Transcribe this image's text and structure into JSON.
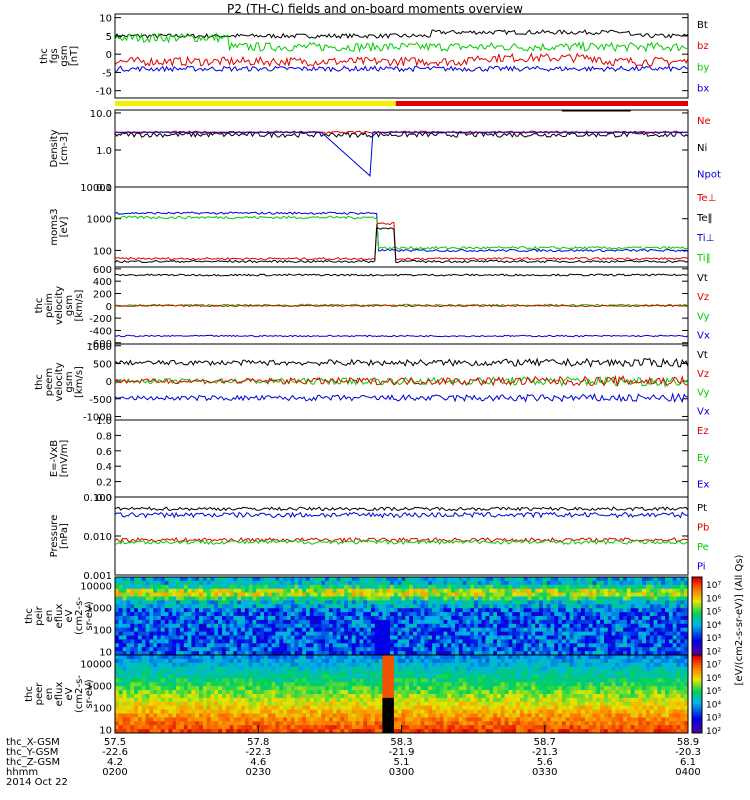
{
  "title": "P2 (TH-C) fields and on-board moments overview",
  "colors": {
    "black": "#000000",
    "red": "#e00000",
    "green": "#00cc00",
    "blue": "#0000dd",
    "yellow": "#f5f000"
  },
  "chart_data": [
    {
      "type": "line",
      "name": "fgs",
      "ylabel": "thc\nfgs\ngsm\n[nT]",
      "ylim": [
        -12,
        11
      ],
      "yticks": [
        "10",
        "5",
        "0",
        "-5",
        "-10"
      ],
      "legend": [
        {
          "label": "Bt",
          "color": "black"
        },
        {
          "label": "bz",
          "color": "red"
        },
        {
          "label": "by",
          "color": "green"
        },
        {
          "label": "bx",
          "color": "blue"
        }
      ],
      "series": [
        {
          "name": "Bt",
          "approx": 5
        },
        {
          "name": "bz",
          "approx": -2
        },
        {
          "name": "by",
          "approx": 2
        },
        {
          "name": "bx",
          "approx": -4
        }
      ]
    },
    {
      "type": "line",
      "name": "density",
      "ylabel": "Density\n[cm-3]",
      "scale": "log",
      "ylim": [
        0.1,
        12
      ],
      "yticks": [
        "10.0",
        "1.0",
        "0.1"
      ],
      "legend": [
        {
          "label": "Ne",
          "color": "red"
        },
        {
          "label": "Ni",
          "color": "black"
        },
        {
          "label": "Npot",
          "color": "blue"
        }
      ],
      "series": [
        {
          "name": "Ne",
          "approx": 3
        },
        {
          "name": "Ni",
          "approx": 2.5
        },
        {
          "name": "Npot",
          "approx": 3
        }
      ]
    },
    {
      "type": "line",
      "name": "temperature",
      "ylabel": "moms3\n[eV]",
      "scale": "log",
      "ylim": [
        30,
        10000
      ],
      "yticks": [
        "10000",
        "1000",
        "100"
      ],
      "legend": [
        {
          "label": "Te⊥",
          "color": "red"
        },
        {
          "label": "Te‖",
          "color": "black"
        },
        {
          "label": "Ti⊥",
          "color": "blue"
        },
        {
          "label": "Ti‖",
          "color": "green"
        }
      ],
      "series": [
        {
          "name": "Te⊥",
          "approx": 50
        },
        {
          "name": "Te‖",
          "approx": 45
        },
        {
          "name": "Ti⊥",
          "approx": 1500
        },
        {
          "name": "Ti‖",
          "approx": 1200
        }
      ]
    },
    {
      "type": "line",
      "name": "peim velocity",
      "ylabel": "thc\npeim\nvelocity\ngsm\n[km/s]",
      "ylim": [
        -620,
        630
      ],
      "yticks": [
        "600",
        "400",
        "200",
        "0",
        "-200",
        "-400",
        "-600"
      ],
      "legend": [
        {
          "label": "Vt",
          "color": "black"
        },
        {
          "label": "Vz",
          "color": "red"
        },
        {
          "label": "Vy",
          "color": "green"
        },
        {
          "label": "Vx",
          "color": "blue"
        }
      ],
      "series": [
        {
          "name": "Vt",
          "approx": 500
        },
        {
          "name": "Vz",
          "approx": 0
        },
        {
          "name": "Vy",
          "approx": 10
        },
        {
          "name": "Vx",
          "approx": -490
        }
      ]
    },
    {
      "type": "line",
      "name": "peem velocity",
      "ylabel": "thc\npeem\nvelocity\ngsm\n[km/s]",
      "ylim": [
        -1100,
        1050
      ],
      "yticks": [
        "1000",
        "500",
        "0",
        "-500",
        "-1000"
      ],
      "legend": [
        {
          "label": "Vt",
          "color": "black"
        },
        {
          "label": "Vz",
          "color": "red"
        },
        {
          "label": "Vy",
          "color": "green"
        },
        {
          "label": "Vx",
          "color": "blue"
        }
      ],
      "series": [
        {
          "name": "Vt",
          "approx": 520
        },
        {
          "name": "Vz",
          "approx": 0
        },
        {
          "name": "Vy",
          "approx": 0
        },
        {
          "name": "Vx",
          "approx": -480
        }
      ]
    },
    {
      "type": "line",
      "name": "efield",
      "ylabel": "E=-VxB\n[mV/m]",
      "ylim": [
        0,
        1
      ],
      "yticks": [
        "1.0",
        "0.8",
        "0.6",
        "0.4",
        "0.2",
        "0.0"
      ],
      "legend": [
        {
          "label": "Ez",
          "color": "red"
        },
        {
          "label": "Ey",
          "color": "green"
        },
        {
          "label": "Ex",
          "color": "blue"
        }
      ],
      "series": []
    },
    {
      "type": "line",
      "name": "pressure",
      "ylabel": "Pressure\n[nPa]",
      "scale": "log",
      "ylim": [
        0.001,
        0.1
      ],
      "yticks": [
        "0.100",
        "0.010",
        "0.001"
      ],
      "legend": [
        {
          "label": "Pt",
          "color": "black"
        },
        {
          "label": "Pb",
          "color": "red"
        },
        {
          "label": "Pe",
          "color": "green"
        },
        {
          "label": "Pi",
          "color": "blue"
        }
      ],
      "series": [
        {
          "name": "Pt",
          "approx": 0.05
        },
        {
          "name": "Pb",
          "approx": 0.008
        },
        {
          "name": "Pe",
          "approx": 0.007
        },
        {
          "name": "Pi",
          "approx": 0.035
        }
      ]
    },
    {
      "type": "heatmap",
      "name": "peir",
      "ylabel": "thc\npeir\nen\neflux\neV\n(cm2-s-\nsr-eV)",
      "scale": "log",
      "ylim": [
        7,
        25000
      ],
      "yticks": [
        "10000",
        "1000",
        "100",
        "10"
      ]
    },
    {
      "type": "heatmap",
      "name": "peer",
      "ylabel": "thc\npeer\nen\neflux\neV\n(cm2-s-\nsr-eV)",
      "scale": "log",
      "ylim": [
        7,
        25000
      ],
      "yticks": [
        "10000",
        "1000",
        "100",
        "10"
      ]
    }
  ],
  "colorbar": {
    "ticks": [
      "10⁷",
      "10⁶",
      "10⁵",
      "10⁴",
      "10³",
      "10²",
      "10⁷",
      "10⁶",
      "10⁵",
      "10⁴",
      "10³",
      "10²"
    ],
    "label": "[eV/(cm2-s-sr-eV)] (All Qs)"
  },
  "x_axis": {
    "labels": [
      "thc_X-GSM",
      "thc_Y-GSM",
      "thc_Z-GSM",
      "hhmm",
      "2014 Oct 22"
    ],
    "ticks": [
      {
        "v1": "57.5",
        "x": "-22.6",
        "y": "4.2",
        "z": "0200"
      },
      {
        "v1": "57.8",
        "x": "-22.3",
        "y": "4.6",
        "z": "0230"
      },
      {
        "v1": "58.3",
        "x": "-21.9",
        "y": "5.1",
        "z": "0300"
      },
      {
        "v1": "58.7",
        "x": "-21.3",
        "y": "5.6",
        "z": "0330"
      },
      {
        "v1": "58.9",
        "x": "-20.3",
        "y": "6.1",
        "z": "0400"
      }
    ]
  }
}
